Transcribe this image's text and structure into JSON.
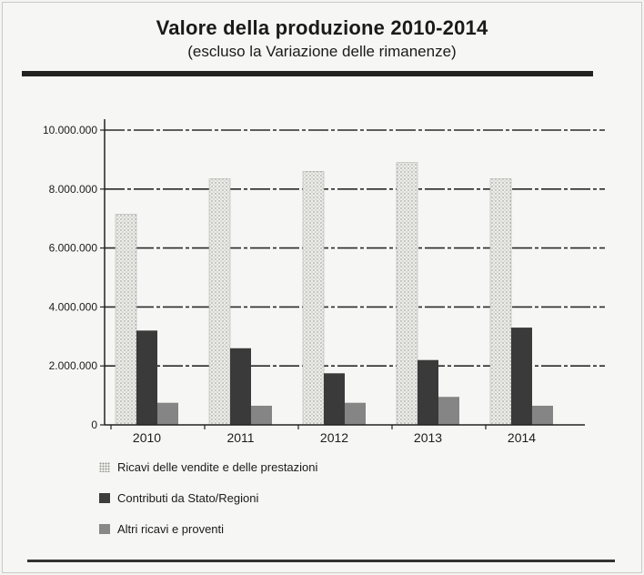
{
  "title": "Valore della produzione 2010-2014",
  "subtitle": "(escluso la Variazione delle rimanenze)",
  "colors": {
    "ricavi": "#e9e9e6",
    "contributi": "#3a3a3a",
    "altri": "#858585",
    "grid": "#2a2a2a"
  },
  "chart_data": {
    "type": "bar",
    "title": "Valore della produzione 2010-2014",
    "subtitle": "(escluso la Variazione delle rimanenze)",
    "categories": [
      "2010",
      "2011",
      "2012",
      "2013",
      "2014"
    ],
    "series": [
      {
        "name": "Ricavi delle vendite e delle prestazioni",
        "values": [
          7150000,
          8350000,
          8600000,
          8900000,
          8350000
        ]
      },
      {
        "name": "Contributi da Stato/Regioni",
        "values": [
          3200000,
          2600000,
          1750000,
          2200000,
          3300000
        ]
      },
      {
        "name": "Altri ricavi e proventi",
        "values": [
          750000,
          650000,
          750000,
          950000,
          650000
        ]
      }
    ],
    "ylim": [
      0,
      10000000
    ],
    "y_ticks": [
      0,
      2000000,
      4000000,
      6000000,
      8000000,
      10000000
    ],
    "y_tick_labels": [
      "0",
      "2.000.000",
      "4.000.000",
      "6.000.000",
      "8.000.000",
      "10.000.000"
    ],
    "xlabel": "",
    "ylabel": "",
    "grid": true,
    "legend_position": "bottom-left"
  }
}
